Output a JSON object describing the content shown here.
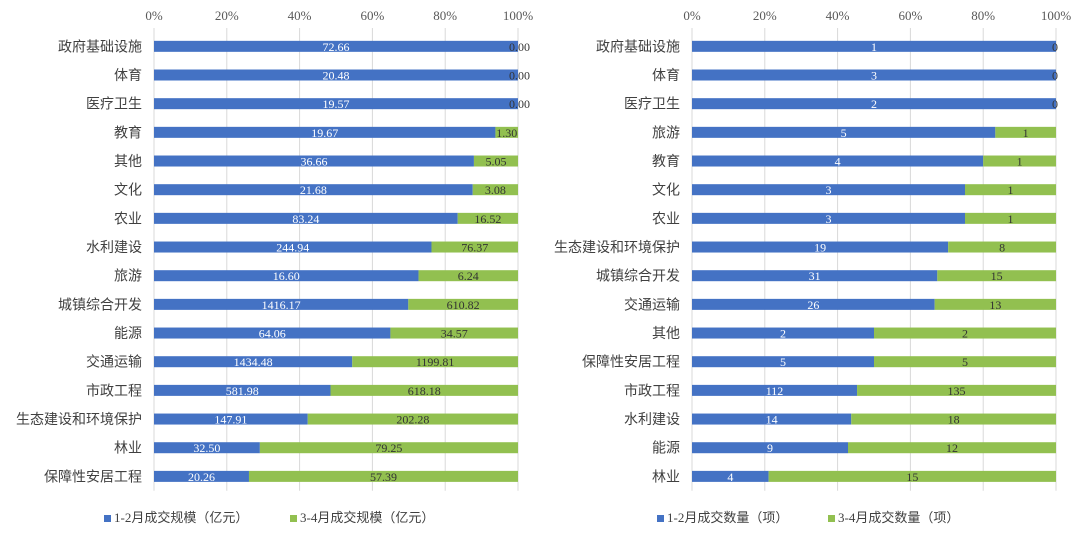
{
  "colors": {
    "series1": "#4472C4",
    "series2": "#92C050",
    "grid": "#D9D9D9",
    "label_light": "#ffffff",
    "label_dark": "#333333"
  },
  "chart_data": [
    {
      "type": "bar",
      "orientation": "horizontal",
      "stacked": "percent",
      "xlim": [
        0,
        100
      ],
      "ticks": [
        "0%",
        "20%",
        "40%",
        "60%",
        "80%",
        "100%"
      ],
      "grid": true,
      "legend_position": "bottom",
      "categories": [
        "政府基础设施",
        "体育",
        "医疗卫生",
        "教育",
        "其他",
        "文化",
        "农业",
        "水利建设",
        "旅游",
        "城镇综合开发",
        "能源",
        "交通运输",
        "市政工程",
        "生态建设和环境保护",
        "林业",
        "保障性安居工程"
      ],
      "series": [
        {
          "name": "1-2月成交规模（亿元）",
          "values": [
            72.66,
            20.48,
            19.57,
            19.67,
            36.66,
            21.68,
            83.24,
            244.94,
            16.6,
            1416.17,
            64.06,
            1434.48,
            581.98,
            147.91,
            32.5,
            20.26
          ],
          "labels": [
            "72.66",
            "20.48",
            "19.57",
            "19.67",
            "36.66",
            "21.68",
            "83.24",
            "244.94",
            "16.60",
            "1416.17",
            "64.06",
            "1434.48",
            "581.98",
            "147.91",
            "32.50",
            "20.26"
          ]
        },
        {
          "name": "3-4月成交规模（亿元）",
          "values": [
            0,
            0,
            0,
            1.3,
            5.05,
            3.08,
            16.52,
            76.37,
            6.24,
            610.82,
            34.57,
            1199.81,
            618.18,
            202.28,
            79.25,
            57.39
          ],
          "labels": [
            "0.00",
            "0.00",
            "0.00",
            "1.30",
            "5.05",
            "3.08",
            "16.52",
            "76.37",
            "6.24",
            "610.82",
            "34.57",
            "1199.81",
            "618.18",
            "202.28",
            "79.25",
            "57.39"
          ]
        }
      ]
    },
    {
      "type": "bar",
      "orientation": "horizontal",
      "stacked": "percent",
      "xlim": [
        0,
        100
      ],
      "ticks": [
        "0%",
        "20%",
        "40%",
        "60%",
        "80%",
        "100%"
      ],
      "grid": true,
      "legend_position": "bottom",
      "categories": [
        "政府基础设施",
        "体育",
        "医疗卫生",
        "旅游",
        "教育",
        "文化",
        "农业",
        "生态建设和环境保护",
        "城镇综合开发",
        "交通运输",
        "其他",
        "保障性安居工程",
        "市政工程",
        "水利建设",
        "能源",
        "林业"
      ],
      "series": [
        {
          "name": "1-2月成交数量（项）",
          "values": [
            1,
            3,
            2,
            5,
            4,
            3,
            3,
            19,
            31,
            26,
            2,
            5,
            112,
            14,
            9,
            4
          ],
          "labels": [
            "1",
            "3",
            "2",
            "5",
            "4",
            "3",
            "3",
            "19",
            "31",
            "26",
            "2",
            "5",
            "112",
            "14",
            "9",
            "4"
          ]
        },
        {
          "name": "3-4月成交数量（项）",
          "values": [
            0,
            0,
            0,
            1,
            1,
            1,
            1,
            8,
            15,
            13,
            2,
            5,
            135,
            18,
            12,
            15
          ],
          "labels": [
            "0",
            "0",
            "0",
            "1",
            "1",
            "1",
            "1",
            "8",
            "15",
            "13",
            "2",
            "5",
            "135",
            "18",
            "12",
            "15"
          ]
        }
      ]
    }
  ]
}
